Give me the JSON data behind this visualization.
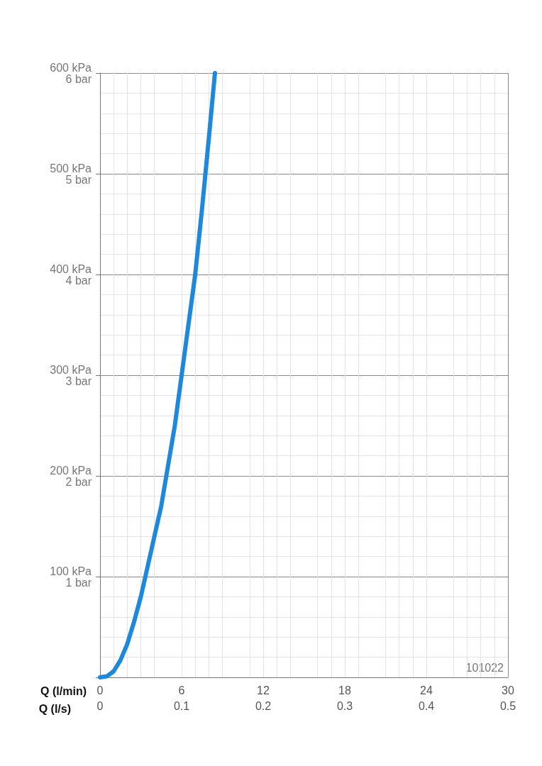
{
  "chart_data": {
    "type": "line",
    "xlabel": "Q (l/min)",
    "x2label": "Q (l/s)",
    "x": [
      0,
      0.5,
      1,
      1.5,
      2,
      2.5,
      3,
      3.5,
      4,
      4.5,
      5,
      5.5,
      6,
      6.5,
      7,
      7.5,
      8,
      8.45
    ],
    "series": [
      {
        "color": "#1e88dc",
        "values": [
          0,
          1,
          6,
          17,
          33,
          55,
          80,
          110,
          140,
          170,
          210,
          250,
          300,
          350,
          400,
          465,
          535,
          600
        ]
      }
    ],
    "xlim": [
      0,
      30
    ],
    "xticks": [
      0,
      6,
      12,
      18,
      24,
      30
    ],
    "x2lim": [
      0,
      0.5
    ],
    "x2ticks": [
      0,
      0.1,
      0.2,
      0.3,
      0.4,
      0.5
    ],
    "ylim": [
      0,
      600
    ],
    "yticks": [
      {
        "value": 0,
        "label": null
      },
      {
        "value": 100,
        "label": "100 kPa"
      },
      {
        "value": 200,
        "label": "200 kPa"
      },
      {
        "value": 300,
        "label": "300 kPa"
      },
      {
        "value": 400,
        "label": "400 kPa"
      },
      {
        "value": 500,
        "label": "500 kPa"
      },
      {
        "value": 600,
        "label": "600 kPa"
      }
    ],
    "y2lim": [
      0,
      6
    ],
    "y2ticks": [
      {
        "value": 0,
        "label": null
      },
      {
        "value": 1,
        "label": "1 bar"
      },
      {
        "value": 2,
        "label": "2 bar"
      },
      {
        "value": 3,
        "label": "3 bar"
      },
      {
        "value": 4,
        "label": "4 bar"
      },
      {
        "value": 5,
        "label": "5 bar"
      },
      {
        "value": 6,
        "label": "6 bar"
      }
    ],
    "grid": true,
    "marker": "none",
    "line_style": "solid",
    "annotations": [
      "101022"
    ]
  }
}
